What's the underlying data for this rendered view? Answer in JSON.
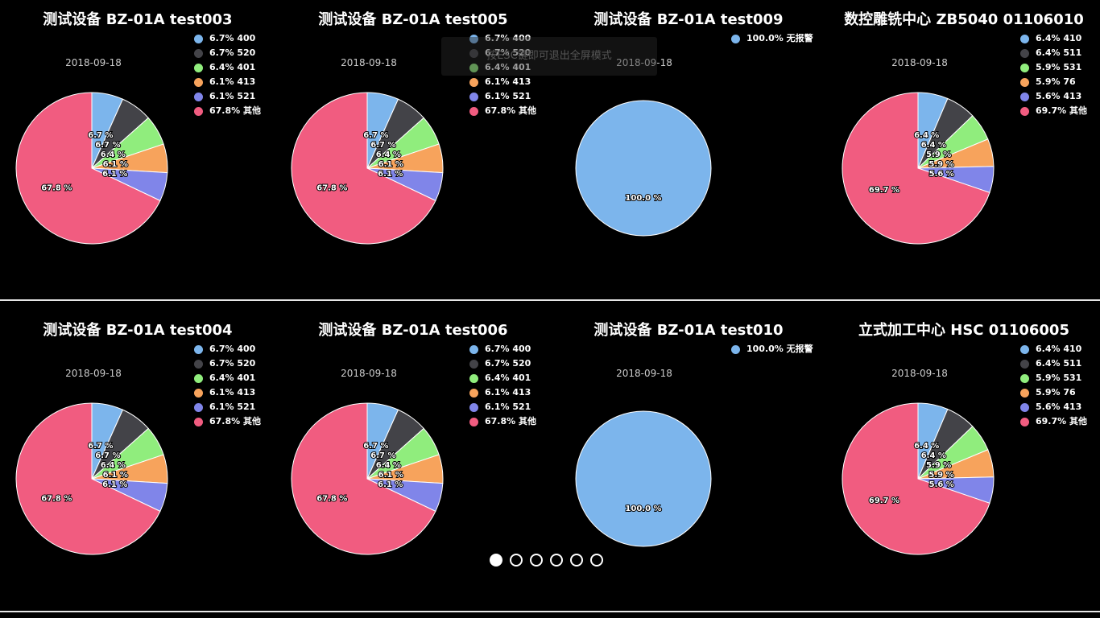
{
  "colors": [
    "#7cb5ec",
    "#434348",
    "#90ed7d",
    "#f7a35c",
    "#8085e9",
    "#f15c80"
  ],
  "fullscreen_toast": "按ESC键即可退出全屏模式",
  "pager": {
    "count": 6,
    "active": 0
  },
  "chart_data": [
    {
      "type": "pie",
      "title": "测试设备 BZ-01A test003",
      "date": "2018-09-18",
      "slices": [
        {
          "name": "400",
          "value": 6.7
        },
        {
          "name": "520",
          "value": 6.7
        },
        {
          "name": "401",
          "value": 6.4
        },
        {
          "name": "413",
          "value": 6.1
        },
        {
          "name": "521",
          "value": 6.1
        },
        {
          "name": "其他",
          "value": 67.8
        }
      ]
    },
    {
      "type": "pie",
      "title": "测试设备 BZ-01A test005",
      "date": "2018-09-18",
      "slices": [
        {
          "name": "400",
          "value": 6.7
        },
        {
          "name": "520",
          "value": 6.7
        },
        {
          "name": "401",
          "value": 6.4
        },
        {
          "name": "413",
          "value": 6.1
        },
        {
          "name": "521",
          "value": 6.1
        },
        {
          "name": "其他",
          "value": 67.8
        }
      ]
    },
    {
      "type": "pie",
      "title": "测试设备 BZ-01A test009",
      "date": "2018-09-18",
      "slices": [
        {
          "name": "无报警",
          "value": 100.0
        }
      ]
    },
    {
      "type": "pie",
      "title": "数控雕铣中心 ZB5040 01106010",
      "date": "2018-09-18",
      "slices": [
        {
          "name": "410",
          "value": 6.4
        },
        {
          "name": "511",
          "value": 6.4
        },
        {
          "name": "531",
          "value": 5.9
        },
        {
          "name": "76",
          "value": 5.9
        },
        {
          "name": "413",
          "value": 5.6
        },
        {
          "name": "其他",
          "value": 69.7
        }
      ]
    },
    {
      "type": "pie",
      "title": "测试设备 BZ-01A test004",
      "date": "2018-09-18",
      "slices": [
        {
          "name": "400",
          "value": 6.7
        },
        {
          "name": "520",
          "value": 6.7
        },
        {
          "name": "401",
          "value": 6.4
        },
        {
          "name": "413",
          "value": 6.1
        },
        {
          "name": "521",
          "value": 6.1
        },
        {
          "name": "其他",
          "value": 67.8
        }
      ]
    },
    {
      "type": "pie",
      "title": "测试设备 BZ-01A test006",
      "date": "2018-09-18",
      "slices": [
        {
          "name": "400",
          "value": 6.7
        },
        {
          "name": "520",
          "value": 6.7
        },
        {
          "name": "401",
          "value": 6.4
        },
        {
          "name": "413",
          "value": 6.1
        },
        {
          "name": "521",
          "value": 6.1
        },
        {
          "name": "其他",
          "value": 67.8
        }
      ]
    },
    {
      "type": "pie",
      "title": "测试设备 BZ-01A test010",
      "date": "2018-09-18",
      "slices": [
        {
          "name": "无报警",
          "value": 100.0
        }
      ]
    },
    {
      "type": "pie",
      "title": "立式加工中心 HSC 01106005",
      "date": "2018-09-18",
      "slices": [
        {
          "name": "410",
          "value": 6.4
        },
        {
          "name": "511",
          "value": 6.4
        },
        {
          "name": "531",
          "value": 5.9
        },
        {
          "name": "76",
          "value": 5.9
        },
        {
          "name": "413",
          "value": 5.6
        },
        {
          "name": "其他",
          "value": 69.7
        }
      ]
    }
  ]
}
